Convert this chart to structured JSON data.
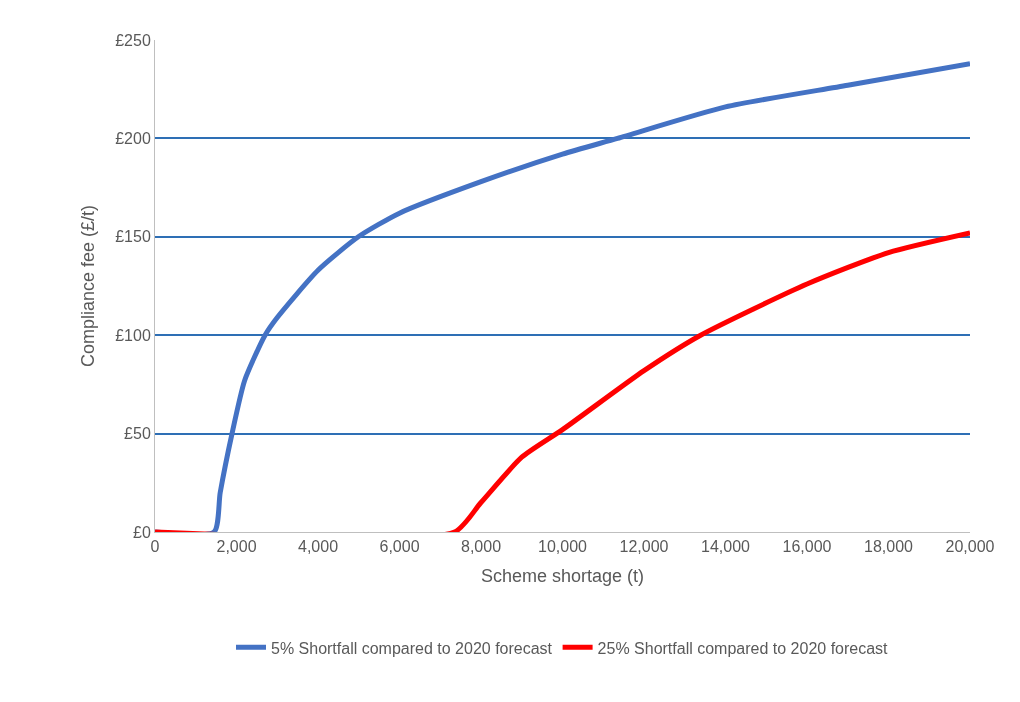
{
  "chart_data": {
    "type": "line",
    "xlabel": "Scheme shortage (t)",
    "ylabel": "Compliance fee (£/t)",
    "xlim": [
      0,
      20000
    ],
    "xticks": [
      {
        "value": 0,
        "label": "0"
      },
      {
        "value": 2000,
        "label": "2,000"
      },
      {
        "value": 4000,
        "label": "4,000"
      },
      {
        "value": 6000,
        "label": "6,000"
      },
      {
        "value": 8000,
        "label": "8,000"
      },
      {
        "value": 10000,
        "label": "10,000"
      },
      {
        "value": 12000,
        "label": "12,000"
      },
      {
        "value": 14000,
        "label": "14,000"
      },
      {
        "value": 16000,
        "label": "16,000"
      },
      {
        "value": 18000,
        "label": "18,000"
      },
      {
        "value": 20000,
        "label": "20,000"
      }
    ],
    "ylim": [
      0,
      250
    ],
    "yticks": [
      {
        "value": 0,
        "label": "£0"
      },
      {
        "value": 50,
        "label": "£50"
      },
      {
        "value": 100,
        "label": "£100"
      },
      {
        "value": 150,
        "label": "£150"
      },
      {
        "value": 200,
        "label": "£200"
      },
      {
        "value": 250,
        "label": "£250"
      }
    ],
    "grid": "y",
    "legend": "bottom",
    "marker": "none",
    "line_style": "solid",
    "series": [
      {
        "name": "5% Shortfall compared to 2020 forecast",
        "color": "#4472c4",
        "x": [
          0,
          1450,
          1600,
          1890,
          2200,
          2700,
          3000,
          4000,
          4990,
          6000,
          8000,
          10000,
          11350,
          14000,
          17000,
          20000
        ],
        "values": [
          0,
          0,
          20,
          50,
          77,
          100,
          109,
          133,
          150,
          162,
          178,
          192,
          200,
          216,
          227,
          238
        ]
      },
      {
        "name": "25% Shortfall compared to 2020 forecast",
        "color": "#ff0000",
        "x": [
          0,
          7350,
          8000,
          9000,
          10000,
          12000,
          13390,
          16000,
          18000,
          20000
        ],
        "values": [
          0,
          0,
          15,
          38,
          52,
          82,
          100,
          126,
          142,
          152
        ]
      }
    ]
  }
}
